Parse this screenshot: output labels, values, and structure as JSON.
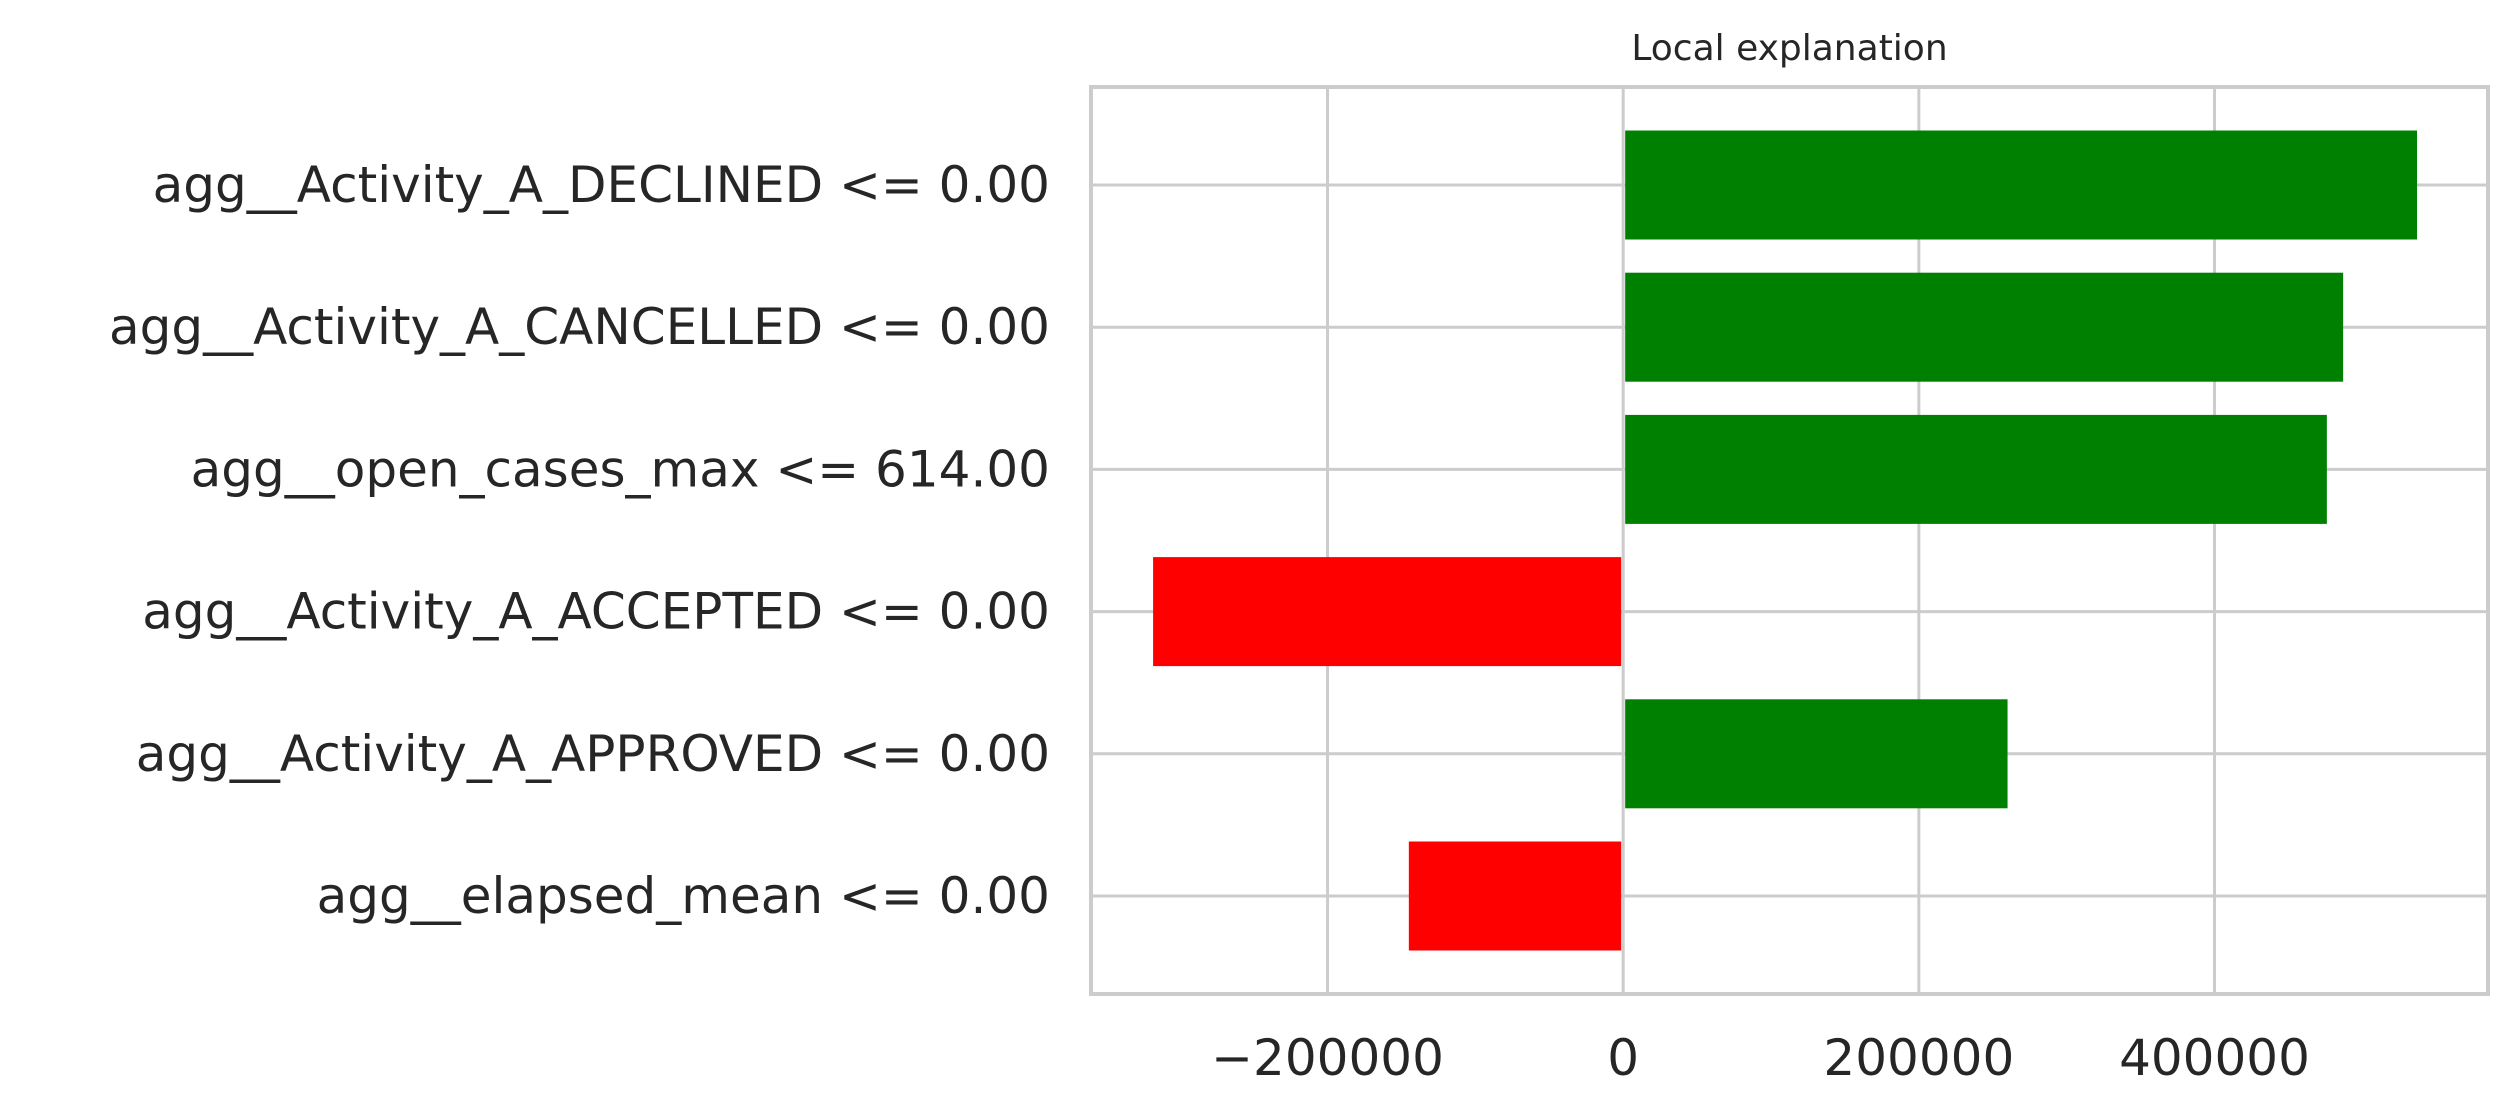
{
  "chart_data": {
    "type": "bar",
    "orientation": "horizontal",
    "title": "Local explanation",
    "xlabel": "",
    "ylabel": "",
    "categories": [
      "agg__Activity_A_DECLINED <= 0.00",
      "agg__Activity_A_CANCELLED <= 0.00",
      "agg__open_cases_max <= 614.00",
      "agg__Activity_A_ACCEPTED <= 0.00",
      "agg__Activity_A_APPROVED <= 0.00",
      "agg__elapsed_mean <= 0.00"
    ],
    "values": [
      537000,
      487000,
      476000,
      -318000,
      260000,
      -145000
    ],
    "xlim": [
      -360000,
      585000
    ],
    "xticks": [
      -200000,
      0,
      200000,
      400000
    ],
    "xtick_labels": [
      "−200000",
      "0",
      "200000",
      "400000"
    ],
    "grid": true,
    "colors": {
      "positive": "#008000",
      "negative": "#ff0000",
      "grid": "#cccccc",
      "axis": "#cccccc",
      "text": "#262626"
    }
  }
}
